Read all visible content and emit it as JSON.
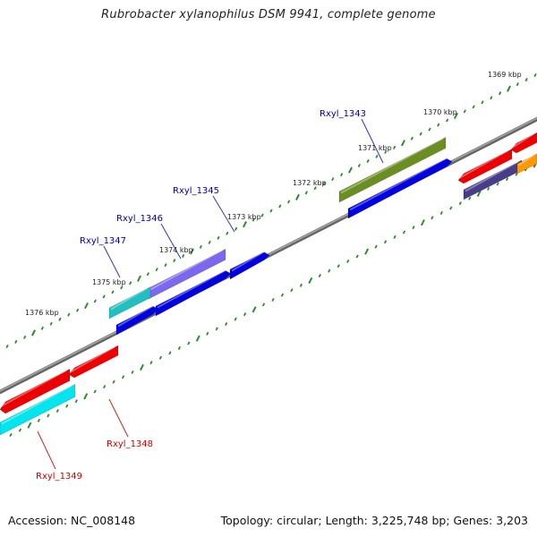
{
  "title": "Rubrobacter xylanophilus DSM 9941, complete genome",
  "footer": {
    "accession": "Accession: NC_008148",
    "summary": "Topology: circular; Length: 3,225,748 bp; Genes: 3,203"
  },
  "kbp_labels": [
    "1369 kbp",
    "1370 kbp",
    "1371 kbp",
    "1372 kbp",
    "1373 kbp",
    "1374 kbp",
    "1375 kbp",
    "1376 kbp"
  ],
  "genes": [
    {
      "name": "Rxyl_1343",
      "strand": "forward",
      "color": "#0000cc",
      "label_color": "#0000aa"
    },
    {
      "name": "Rxyl_1345",
      "strand": "forward",
      "color": "#0000cc",
      "label_color": "#0000aa"
    },
    {
      "name": "Rxyl_1346",
      "strand": "forward",
      "color": "#0000cc",
      "label_color": "#0000aa"
    },
    {
      "name": "Rxyl_1347",
      "strand": "forward",
      "color": "#0000cc",
      "label_color": "#0000aa"
    },
    {
      "name": "Rxyl_1348",
      "strand": "reverse",
      "color": "#ee0000",
      "label_color": "#cc0000"
    },
    {
      "name": "Rxyl_1349",
      "strand": "reverse",
      "color": "#ee0000",
      "label_color": "#cc0000"
    }
  ],
  "colors": {
    "backbone": "#808080",
    "tick": "#2e8b2e",
    "forward_gene": "#0000e0",
    "reverse_gene": "#ee0000",
    "cog_olive": "#6b8e23",
    "cog_purple": "#7b68ee",
    "cog_cyan": "#20c0c0",
    "cog_cyan_light": "#00e5ee",
    "cog_orange": "#ff9900",
    "cog_slate": "#483d8b"
  }
}
